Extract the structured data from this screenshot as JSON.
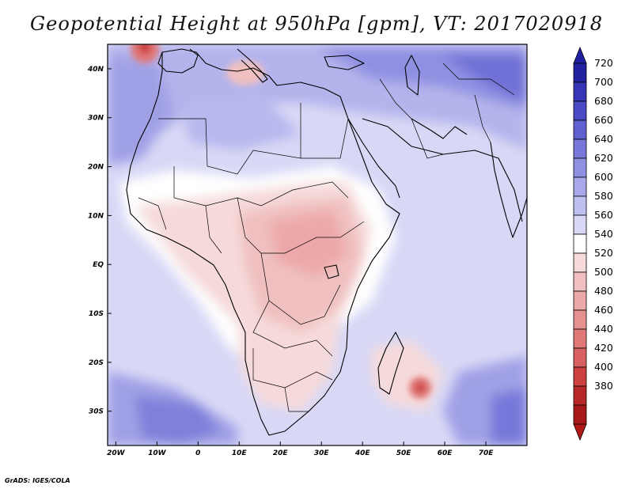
{
  "title": "Geopotential Height at 950hPa [gpm], VT: 2017020918",
  "credit": "GrADS: IGES/COLA",
  "map": {
    "lon_range": [
      -22,
      80
    ],
    "lat_range": [
      -37,
      45
    ],
    "x_ticks": [
      "20W",
      "10W",
      "0",
      "10E",
      "20E",
      "30E",
      "40E",
      "50E",
      "60E",
      "70E"
    ],
    "x_tick_values": [
      -20,
      -10,
      0,
      10,
      20,
      30,
      40,
      50,
      60,
      70
    ],
    "y_ticks": [
      "40N",
      "30N",
      "20N",
      "10N",
      "EQ",
      "10S",
      "20S",
      "30S"
    ],
    "y_tick_values": [
      40,
      30,
      20,
      10,
      0,
      -10,
      -20,
      -30
    ]
  },
  "colorbar": {
    "levels": [
      "720",
      "700",
      "680",
      "660",
      "640",
      "620",
      "600",
      "580",
      "560",
      "540",
      "520",
      "500",
      "480",
      "460",
      "440",
      "420",
      "400",
      "380"
    ],
    "colors": [
      "#2222a0",
      "#3535b5",
      "#4a4ac4",
      "#6060d0",
      "#7878da",
      "#9090e2",
      "#a8a8ea",
      "#c0c0f0",
      "#d8d8f6",
      "#ffffff",
      "#f6dada",
      "#f2c0c0",
      "#eca8a8",
      "#e69090",
      "#e07878",
      "#d86060",
      "#cc4040",
      "#b82828",
      "#a81818"
    ],
    "top_color": "#2020a0",
    "bottom_color": "#b01818"
  }
}
